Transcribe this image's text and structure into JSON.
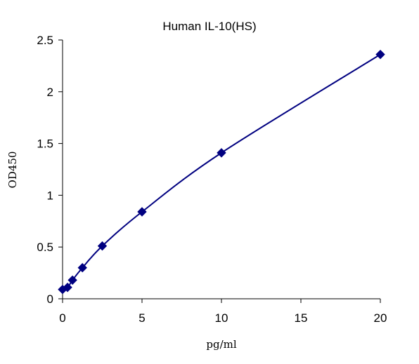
{
  "chart_data": {
    "type": "scatter",
    "title": "Human IL-10(HS)",
    "xlabel": "pg/ml",
    "ylabel": "OD450",
    "xlim": [
      0,
      20
    ],
    "ylim": [
      0,
      2.5
    ],
    "x_ticks": [
      0,
      5,
      10,
      15,
      20
    ],
    "y_ticks": [
      0,
      0.5,
      1,
      1.5,
      2,
      2.5
    ],
    "x_tick_labels": [
      "0",
      "5",
      "10",
      "15",
      "20"
    ],
    "y_tick_labels": [
      "0",
      "0.5",
      "1",
      "1.5",
      "2",
      "2.5"
    ],
    "grid": false,
    "legend": "none",
    "series": [
      {
        "x": [
          0,
          0.3125,
          0.625,
          1.25,
          2.5,
          5,
          10,
          20
        ],
        "y": [
          0.09,
          0.11,
          0.18,
          0.3,
          0.51,
          0.84,
          1.41,
          2.36
        ],
        "marker": "diamond",
        "color": "#000080",
        "fit_curve": true
      }
    ]
  }
}
